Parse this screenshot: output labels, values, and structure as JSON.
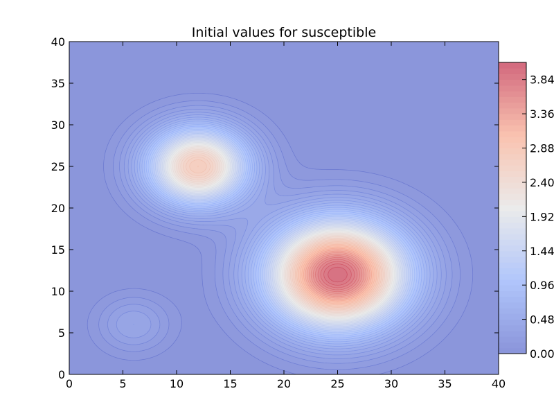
{
  "chart_data": {
    "type": "contour",
    "title": "Initial values for susceptible",
    "xlabel": "",
    "ylabel": "",
    "xlim": [
      0,
      40
    ],
    "ylim": [
      0,
      40
    ],
    "xticks": [
      "0",
      "5",
      "10",
      "15",
      "20",
      "25",
      "30",
      "35",
      "40"
    ],
    "yticks": [
      "0",
      "5",
      "10",
      "15",
      "20",
      "25",
      "30",
      "35",
      "40"
    ],
    "colormap": "coolwarm",
    "alpha": 0.6,
    "grid": false,
    "colorbar": {
      "position": "right",
      "range": [
        0,
        4.08
      ],
      "ticks": [
        "0.00",
        "0.48",
        "0.96",
        "1.44",
        "1.92",
        "2.40",
        "2.88",
        "3.36",
        "3.84"
      ]
    },
    "components": [
      {
        "name": "",
        "center": [
          12,
          25
        ],
        "peak": 2.8,
        "sigma": 3.3
      },
      {
        "name": "",
        "center": [
          25,
          12
        ],
        "peak": 4.0,
        "sigma": 4.5
      },
      {
        "name": "",
        "center": [
          6,
          6
        ],
        "peak": 0.4,
        "sigma": 2.4
      }
    ]
  }
}
